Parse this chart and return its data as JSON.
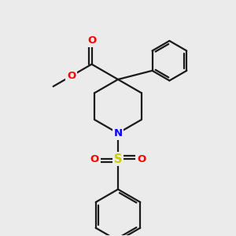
{
  "bg_color": "#ebebeb",
  "bond_color": "#1a1a1a",
  "bond_lw": 1.6,
  "atom_colors": {
    "O": "#ff0000",
    "N": "#0000ff",
    "S": "#cccc00",
    "C": "#1a1a1a"
  },
  "font_size": 9.5,
  "fig_size": [
    3.0,
    3.0
  ],
  "dpi": 100
}
